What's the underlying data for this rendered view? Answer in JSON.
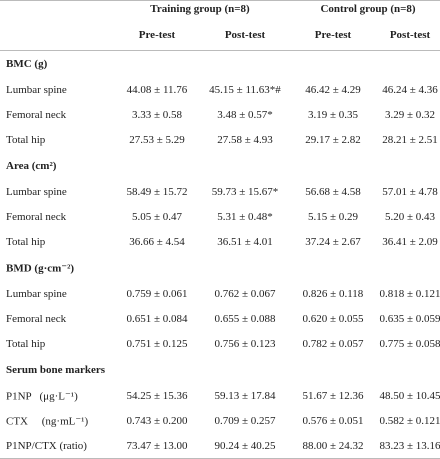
{
  "header": {
    "groups": [
      "Training group (n=8)",
      "Control group (n=8)"
    ],
    "columns": [
      "Pre-test",
      "Post-test",
      "Pre-test",
      "Post-test"
    ]
  },
  "sections": [
    {
      "title": "BMC (g)",
      "rows": [
        {
          "label": "Lumbar spine",
          "values": [
            "44.08 ± 11.76",
            "45.15 ± 11.63*#",
            "46.42 ± 4.29",
            "46.24 ± 4.36"
          ]
        },
        {
          "label": "Femoral neck",
          "values": [
            "3.33 ± 0.58",
            "3.48 ± 0.57*",
            "3.19 ± 0.35",
            "3.29 ± 0.32"
          ]
        },
        {
          "label": "Total hip",
          "values": [
            "27.53 ± 5.29",
            "27.58 ± 4.93",
            "29.17 ± 2.82",
            "28.21 ± 2.51"
          ]
        }
      ]
    },
    {
      "title": "Area (cm²)",
      "rows": [
        {
          "label": "Lumbar spine",
          "values": [
            "58.49 ± 15.72",
            "59.73 ± 15.67*",
            "56.68 ± 4.58",
            "57.01 ± 4.78"
          ]
        },
        {
          "label": "Femoral neck",
          "values": [
            "5.05 ± 0.47",
            "5.31 ± 0.48*",
            "5.15 ± 0.29",
            "5.20 ± 0.43"
          ]
        },
        {
          "label": "Total hip",
          "values": [
            "36.66 ± 4.54",
            "36.51 ± 4.01",
            "37.24 ± 2.67",
            "36.41 ± 2.09"
          ]
        }
      ]
    },
    {
      "title": "BMD (g·cm⁻²)",
      "rows": [
        {
          "label": "Lumbar spine",
          "values": [
            "0.759 ± 0.061",
            "0.762 ± 0.067",
            "0.826 ± 0.118",
            "0.818 ± 0.121"
          ]
        },
        {
          "label": "Femoral neck",
          "values": [
            "0.651 ± 0.084",
            "0.655 ± 0.088",
            "0.620 ± 0.055",
            "0.635 ± 0.059"
          ]
        },
        {
          "label": "Total hip",
          "values": [
            "0.751 ± 0.125",
            "0.756 ± 0.123",
            "0.782 ± 0.057",
            "0.775 ± 0.058"
          ]
        }
      ]
    },
    {
      "title": "Serum bone markers",
      "rows": [
        {
          "label": "P1NP   (μg·L⁻¹)",
          "values": [
            "54.25 ± 15.36",
            "59.13 ± 17.84",
            "51.67 ± 12.36",
            "48.50 ± 10.45"
          ]
        },
        {
          "label": "CTX     (ng·mL⁻¹)",
          "values": [
            "0.743 ± 0.200",
            "0.709 ± 0.257",
            "0.576 ± 0.051",
            "0.582 ± 0.121"
          ]
        },
        {
          "label": "P1NP/CTX (ratio)",
          "values": [
            "73.47 ± 13.00",
            "90.24 ± 40.25",
            "88.00 ± 24.32",
            "83.23 ± 13.16"
          ]
        }
      ]
    }
  ]
}
